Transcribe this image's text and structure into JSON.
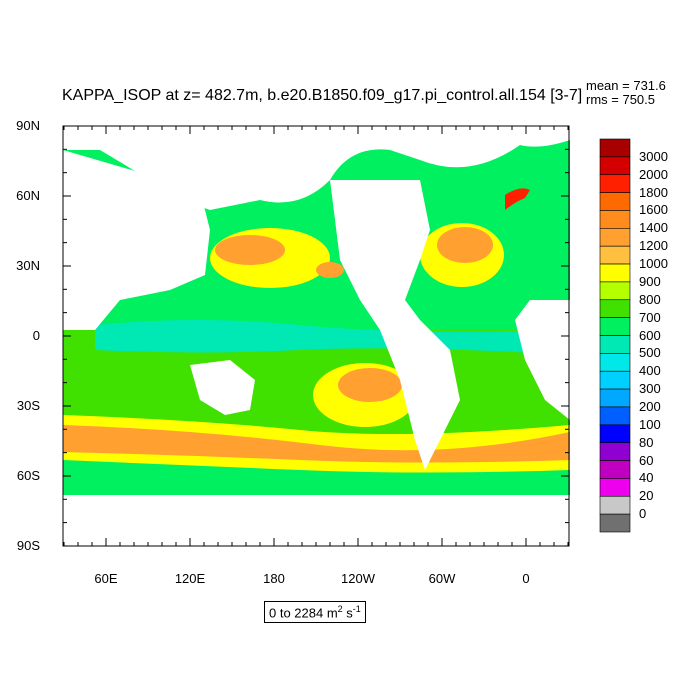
{
  "title": "KAPPA_ISOP at z= 482.7m, b.e20.B1850.f09_g17.pi_control.all.154 [3-7]",
  "stats": {
    "mean": "mean = 731.6",
    "rms": "rms = 750.5"
  },
  "lat_labels": [
    "90N",
    "60N",
    "30N",
    "0",
    "30S",
    "60S",
    "90S"
  ],
  "lon_labels": [
    "60E",
    "120E",
    "180",
    "120W",
    "60W",
    "0"
  ],
  "range_text": {
    "prefix": "0 to 2284 m",
    "exp1": "2",
    "mid": " s",
    "exp2": "-1"
  },
  "colorbar": {
    "labels": [
      "3000",
      "2000",
      "1800",
      "1600",
      "1400",
      "1200",
      "1000",
      "900",
      "800",
      "700",
      "600",
      "500",
      "400",
      "300",
      "200",
      "100",
      "80",
      "60",
      "40",
      "20",
      "0"
    ],
    "colors": [
      "#a80000",
      "#d40000",
      "#ff2000",
      "#ff6a00",
      "#ff8c1c",
      "#ffa030",
      "#ffc040",
      "#ffff00",
      "#b4ff00",
      "#40e000",
      "#00f060",
      "#00e8b4",
      "#00e8e8",
      "#00d0ff",
      "#00a8ff",
      "#0060ff",
      "#0000ff",
      "#9000d0",
      "#c000c0",
      "#ee00ee",
      "#c8c8c8",
      "#707070"
    ]
  }
}
